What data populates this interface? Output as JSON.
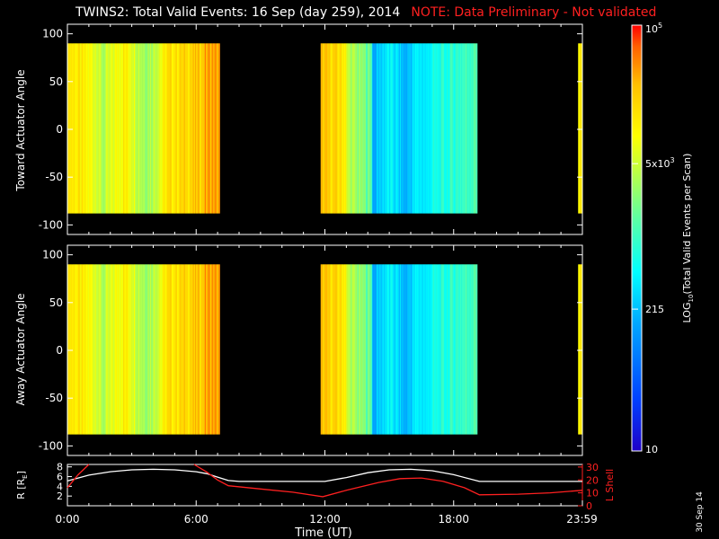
{
  "title": {
    "main": "TWINS2: Total Valid Events: 16 Sep (day 259), 2014",
    "note": "NOTE: Data Preliminary - Not validated"
  },
  "date_stamp": "30 Sep 14",
  "colors": {
    "background": "#000000",
    "axes": "#ffffff",
    "note": "#ff2020",
    "l_shell": "#ff2020",
    "r_earth": "#ffffff"
  },
  "chart_data": [
    {
      "type": "heatmap",
      "panel": "toward",
      "ylabel": "Toward Actuator Angle",
      "ylim": [
        -110,
        110
      ],
      "yticks": [
        100,
        50,
        0,
        -50,
        -100
      ],
      "xlim": [
        0,
        24
      ],
      "data_segments_hours": [
        [
          0,
          7.1
        ],
        [
          11.8,
          19.1
        ],
        [
          23.8,
          24
        ]
      ],
      "angle_range": [
        -88,
        90
      ]
    },
    {
      "type": "heatmap",
      "panel": "away",
      "ylabel": "Away Actuator Angle",
      "ylim": [
        -110,
        110
      ],
      "yticks": [
        100,
        50,
        0,
        -50,
        -100
      ],
      "xlim": [
        0,
        24
      ],
      "data_segments_hours": [
        [
          0,
          7.1
        ],
        [
          11.8,
          19.1
        ],
        [
          23.8,
          24
        ]
      ],
      "angle_range": [
        -88,
        90
      ]
    },
    {
      "type": "line",
      "panel": "orbit",
      "xlabel": "Time (UT)",
      "xticks": [
        "0:00",
        "6:00",
        "12:00",
        "18:00",
        "23:59"
      ],
      "xlim": [
        0,
        24
      ],
      "ylabel_left": "R [R",
      "ylabel_left_sub": "E",
      "ylabel_left_close": "]",
      "yticks_left": [
        2,
        4,
        6,
        8
      ],
      "ylim_left": [
        0,
        8.5
      ],
      "ylabel_right": "L Shell",
      "yticks_right": [
        0,
        10,
        20,
        30
      ],
      "ylim_right": [
        0,
        32
      ],
      "series": [
        {
          "axis": "left",
          "x": [
            0,
            1,
            2,
            3,
            4,
            5,
            6,
            6.5,
            7.0,
            7.5,
            8,
            9,
            10,
            11,
            12,
            13,
            14,
            15,
            16,
            17,
            18,
            19.2,
            20,
            22,
            24
          ],
          "y": [
            5.1,
            6.3,
            7.0,
            7.4,
            7.5,
            7.4,
            7.0,
            6.6,
            5.9,
            5.2,
            5.0,
            5.0,
            5.0,
            5.0,
            5.0,
            5.8,
            6.8,
            7.4,
            7.5,
            7.2,
            6.4,
            5.0,
            5.0,
            5.0,
            5.0
          ]
        },
        {
          "axis": "right",
          "x": [
            0,
            0.5,
            1.0
          ],
          "y": [
            14,
            24,
            32
          ]
        },
        {
          "axis": "right",
          "x": [
            5.9,
            6.5,
            7.0,
            7.5,
            9,
            10.5,
            11.9,
            13,
            14.5,
            15.5,
            16.5,
            17.5,
            18.5,
            19.2,
            21,
            22.5,
            24
          ],
          "y": [
            32,
            26,
            20,
            15.5,
            13,
            10.5,
            7,
            12,
            18,
            21,
            21.5,
            19,
            14,
            8.5,
            9,
            10,
            12
          ]
        }
      ]
    },
    {
      "type": "colorbar",
      "label": "LOG",
      "label_sub": "10",
      "label_rest": "(Total Valid Events per Scan)",
      "ticks": [
        {
          "base": "10",
          "sup": "5"
        },
        {
          "base": "5x10",
          "sup": "3"
        },
        {
          "base": "215",
          "sup": ""
        },
        {
          "base": "10",
          "sup": ""
        }
      ],
      "range": [
        10,
        100000
      ]
    }
  ]
}
